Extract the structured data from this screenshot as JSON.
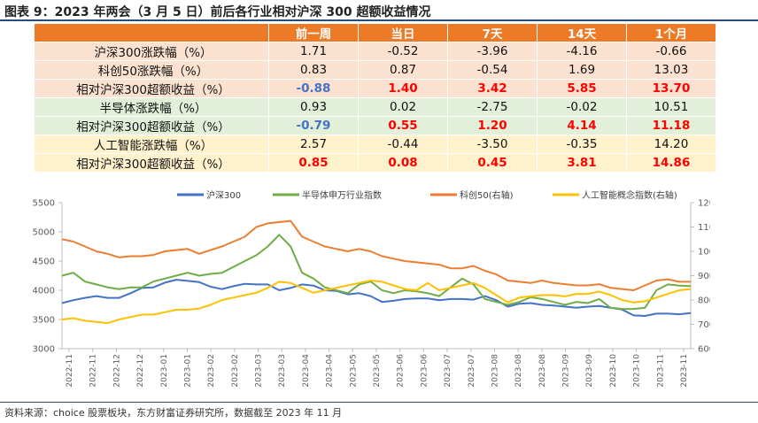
{
  "title": "图表 9：2023 年两会（3 月 5 日）前后各行业相对沪深 300 超额收益情况",
  "table": {
    "columns": [
      "前一周",
      "当日",
      "7天",
      "14天",
      "1个月"
    ],
    "rows": [
      {
        "label": "沪深300涨跌幅（%）",
        "bg": "#fbe1cf",
        "values": [
          "1.71",
          "-0.52",
          "-3.96",
          "-4.16",
          "-0.66"
        ],
        "colors": [
          "#111111",
          "#111111",
          "#111111",
          "#111111",
          "#111111"
        ],
        "bold": false
      },
      {
        "label": "科创50涨跌幅（%）",
        "bg": "#fbe1cf",
        "values": [
          "0.83",
          "0.87",
          "-0.54",
          "1.69",
          "13.03"
        ],
        "colors": [
          "#111111",
          "#111111",
          "#111111",
          "#111111",
          "#111111"
        ],
        "bold": false
      },
      {
        "label": "相对沪深300超额收益（%）",
        "bg": "#fbe1cf",
        "values": [
          "-0.88",
          "1.40",
          "3.42",
          "5.85",
          "13.70"
        ],
        "colors": [
          "#4472c4",
          "#ff0000",
          "#ff0000",
          "#ff0000",
          "#ff0000"
        ],
        "bold": true
      },
      {
        "label": "半导体涨跌幅（%）",
        "bg": "#e2efd9",
        "values": [
          "0.93",
          "0.02",
          "-2.75",
          "-0.02",
          "10.51"
        ],
        "colors": [
          "#111111",
          "#111111",
          "#111111",
          "#111111",
          "#111111"
        ],
        "bold": false
      },
      {
        "label": "相对沪深300超额收益（%）",
        "bg": "#e2efd9",
        "values": [
          "-0.79",
          "0.55",
          "1.20",
          "4.14",
          "11.18"
        ],
        "colors": [
          "#4472c4",
          "#ff0000",
          "#ff0000",
          "#ff0000",
          "#ff0000"
        ],
        "bold": true
      },
      {
        "label": "人工智能涨跌幅（%）",
        "bg": "#fff2cc",
        "values": [
          "2.57",
          "-0.44",
          "-3.50",
          "-0.35",
          "14.20"
        ],
        "colors": [
          "#111111",
          "#111111",
          "#111111",
          "#111111",
          "#111111"
        ],
        "bold": false
      },
      {
        "label": "相对沪深300超额收益（%）",
        "bg": "#fff2cc",
        "values": [
          "0.85",
          "0.08",
          "0.45",
          "3.81",
          "14.86"
        ],
        "colors": [
          "#ff0000",
          "#ff0000",
          "#ff0000",
          "#ff0000",
          "#ff0000"
        ],
        "bold": true
      }
    ]
  },
  "chart_data": {
    "type": "line",
    "title": "",
    "xlabel": "",
    "ylabel": "",
    "ylabel_right": "",
    "legend_position": "top",
    "grid": false,
    "ylim": [
      3000,
      5500
    ],
    "y_ticks": [
      3000,
      3500,
      4000,
      4500,
      5000,
      5500
    ],
    "ylim_right": [
      600,
      1200
    ],
    "y_ticks_right": [
      600,
      700,
      800,
      900,
      1000,
      1100,
      1200
    ],
    "x_tick_labels": [
      "2022-11",
      "2022-11",
      "2022-12",
      "2022-12",
      "2023-01",
      "2023-01",
      "2023-02",
      "2023-02",
      "2023-03",
      "2023-03",
      "2023-04",
      "2023-04",
      "2023-05",
      "2023-05",
      "2023-06",
      "2023-06",
      "2023-07",
      "2023-07",
      "2023-08",
      "2023-08",
      "2023-08",
      "2023-09",
      "2023-09",
      "2023-10",
      "2023-10",
      "2023-11",
      "2023-11"
    ],
    "series": [
      {
        "name": "沪深300",
        "color": "#4472c4",
        "axis": "left",
        "values": [
          3780,
          3830,
          3870,
          3900,
          3870,
          3870,
          3950,
          4040,
          4050,
          4130,
          4180,
          4160,
          4140,
          4060,
          4020,
          4070,
          4110,
          4100,
          4100,
          4000,
          4040,
          4100,
          4080,
          4000,
          3990,
          3930,
          3950,
          3900,
          3800,
          3820,
          3850,
          3860,
          3860,
          3830,
          3850,
          3850,
          3840,
          3900,
          3830,
          3720,
          3770,
          3780,
          3750,
          3740,
          3720,
          3700,
          3720,
          3730,
          3700,
          3670,
          3570,
          3560,
          3600,
          3600,
          3590,
          3610
        ]
      },
      {
        "name": "半导体申万行业指数",
        "color": "#70ad47",
        "axis": "left",
        "values": [
          4250,
          4300,
          4150,
          4100,
          4050,
          4020,
          4050,
          4050,
          4150,
          4200,
          4250,
          4300,
          4250,
          4280,
          4300,
          4400,
          4500,
          4600,
          4750,
          4950,
          4750,
          4300,
          4200,
          4050,
          4000,
          3950,
          4100,
          4150,
          4000,
          3950,
          4000,
          3980,
          3950,
          3900,
          4050,
          4200,
          4100,
          3850,
          3800,
          3750,
          3800,
          3880,
          3850,
          3800,
          3750,
          3800,
          3780,
          3850,
          3700,
          3680,
          3680,
          3700,
          4000,
          4100,
          4080,
          4070
        ]
      },
      {
        "name": "科创50(右轴)",
        "color": "#ed7d31",
        "axis": "right",
        "values": [
          1050,
          1040,
          1020,
          1000,
          990,
          975,
          980,
          980,
          985,
          1000,
          1005,
          1010,
          990,
          1005,
          1020,
          1040,
          1060,
          1100,
          1115,
          1120,
          1125,
          1060,
          1040,
          1020,
          1010,
          1000,
          1010,
          1000,
          980,
          970,
          960,
          955,
          950,
          945,
          930,
          930,
          940,
          920,
          905,
          880,
          875,
          870,
          880,
          870,
          865,
          860,
          860,
          865,
          850,
          845,
          840,
          860,
          880,
          885,
          875,
          875
        ]
      },
      {
        "name": "人工智能概念指数(右轴)",
        "color": "#ffc000",
        "axis": "right",
        "values": [
          720,
          725,
          715,
          710,
          705,
          720,
          730,
          740,
          740,
          750,
          760,
          760,
          765,
          780,
          800,
          810,
          820,
          830,
          850,
          875,
          870,
          850,
          830,
          840,
          850,
          860,
          870,
          880,
          875,
          860,
          845,
          840,
          870,
          840,
          850,
          860,
          870,
          850,
          820,
          790,
          810,
          815,
          820,
          820,
          815,
          825,
          825,
          835,
          820,
          800,
          790,
          795,
          810,
          825,
          840,
          845
        ]
      }
    ]
  },
  "source": "资料来源：choice 股票板块，东方财富证券研究所，数据截至 2023 年 11 月"
}
